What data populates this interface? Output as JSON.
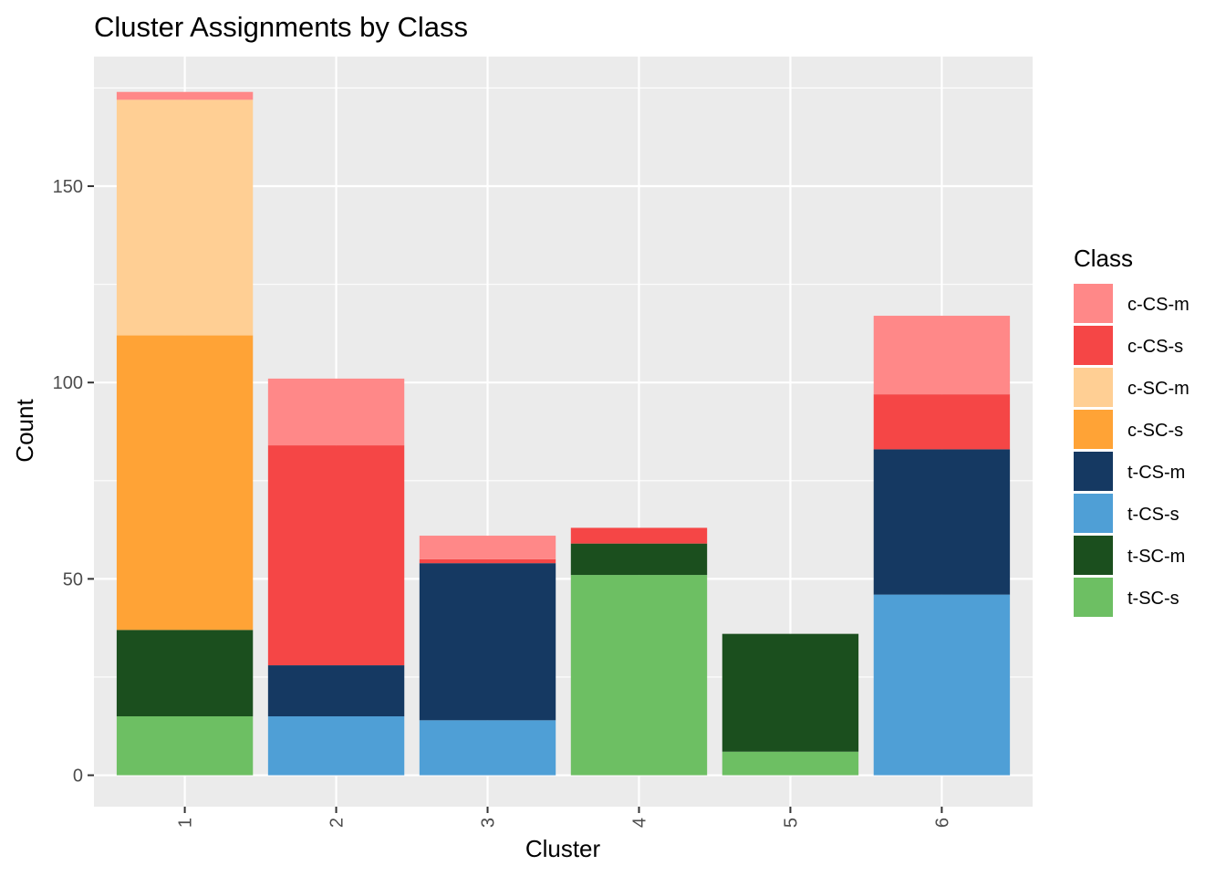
{
  "chart_data": {
    "type": "bar",
    "stacked": true,
    "title": "Cluster Assignments by Class",
    "xlabel": "Cluster",
    "ylabel": "Count",
    "categories": [
      "1",
      "2",
      "3",
      "4",
      "5",
      "6"
    ],
    "yticks": [
      0,
      50,
      100,
      150
    ],
    "ylim": [
      -8,
      183
    ],
    "grid": true,
    "legend": {
      "title": "Class",
      "position": "right"
    },
    "series": [
      {
        "name": "t-SC-s",
        "color": "#6DBF63",
        "values": [
          15,
          0,
          0,
          51,
          6,
          0
        ]
      },
      {
        "name": "t-SC-m",
        "color": "#1B4F1E",
        "values": [
          22,
          0,
          0,
          8,
          30,
          0
        ]
      },
      {
        "name": "t-CS-s",
        "color": "#4F9FD6",
        "values": [
          0,
          15,
          14,
          0,
          0,
          46
        ]
      },
      {
        "name": "t-CS-m",
        "color": "#153962",
        "values": [
          0,
          13,
          40,
          0,
          0,
          37
        ]
      },
      {
        "name": "c-SC-s",
        "color": "#FFA336",
        "values": [
          75,
          0,
          0,
          0,
          0,
          0
        ]
      },
      {
        "name": "c-SC-m",
        "color": "#FFCF94",
        "values": [
          60,
          0,
          0,
          0,
          0,
          0
        ]
      },
      {
        "name": "c-CS-s",
        "color": "#F54646",
        "values": [
          0,
          56,
          1,
          4,
          0,
          14
        ]
      },
      {
        "name": "c-CS-m",
        "color": "#FF8888",
        "values": [
          2,
          17,
          6,
          0,
          0,
          20
        ]
      }
    ],
    "legend_order": [
      "c-CS-m",
      "c-CS-s",
      "c-SC-m",
      "c-SC-s",
      "t-CS-m",
      "t-CS-s",
      "t-SC-m",
      "t-SC-s"
    ],
    "panel_color": "#EBEBEB",
    "grid_color": "#FFFFFF"
  }
}
